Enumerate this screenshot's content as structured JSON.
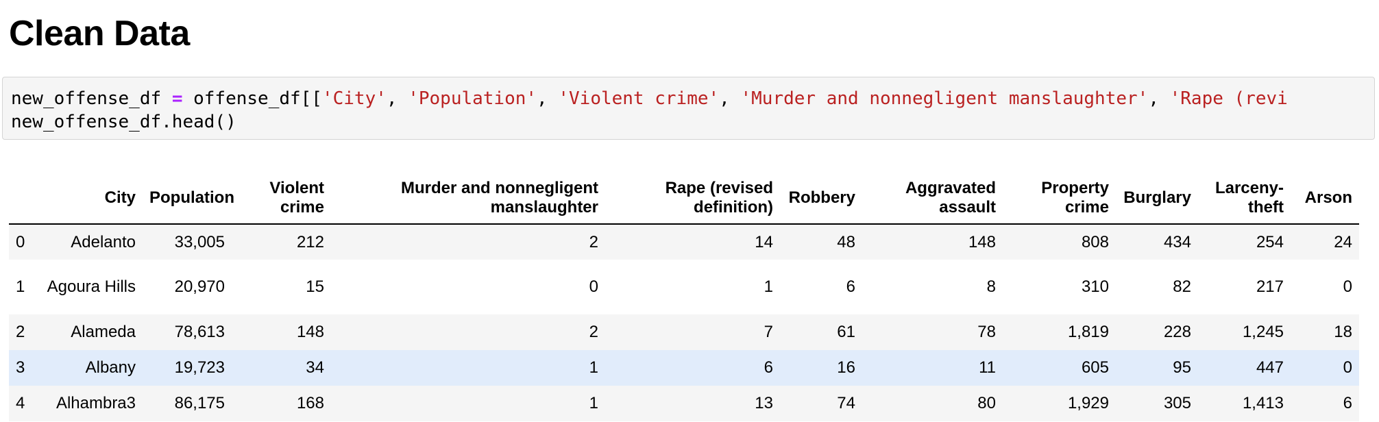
{
  "page": {
    "title": "Clean Data"
  },
  "code": {
    "line1": {
      "var": "new_offense_df ",
      "op": "=",
      "open": " offense_df[[",
      "s1": "'City'",
      "c1": ", ",
      "s2": "'Population'",
      "c2": ", ",
      "s3": "'Violent crime'",
      "c3": ", ",
      "s4": "'Murder and nonnegligent manslaughter'",
      "c4": ", ",
      "s5": "'Rape (revi"
    },
    "line2": "new_offense_df.head()"
  },
  "table": {
    "columns": [
      "",
      "City",
      "Population",
      "Violent crime",
      "Murder and nonnegligent manslaughter",
      "Rape (revised definition)",
      "Robbery",
      "Aggravated assault",
      "Property crime",
      "Burglary",
      "Larceny-theft",
      "Arson"
    ],
    "rows": [
      [
        "0",
        "Adelanto",
        "33,005",
        "212",
        "2",
        "14",
        "48",
        "148",
        "808",
        "434",
        "254",
        "24"
      ],
      [
        "1",
        "Agoura Hills",
        "20,970",
        "15",
        "0",
        "1",
        "6",
        "8",
        "310",
        "82",
        "217",
        "0"
      ],
      [
        "2",
        "Alameda",
        "78,613",
        "148",
        "2",
        "7",
        "61",
        "78",
        "1,819",
        "228",
        "1,245",
        "18"
      ],
      [
        "3",
        "Albany",
        "19,723",
        "34",
        "1",
        "6",
        "16",
        "11",
        "605",
        "95",
        "447",
        "0"
      ],
      [
        "4",
        "Alhambra3",
        "86,175",
        "168",
        "1",
        "13",
        "74",
        "80",
        "1,929",
        "305",
        "1,413",
        "6"
      ]
    ]
  },
  "colors": {
    "string": "#ba2121",
    "operator": "#aa22ff",
    "stripe": "#f5f5f5",
    "hover_row": "#e1ecfb"
  }
}
